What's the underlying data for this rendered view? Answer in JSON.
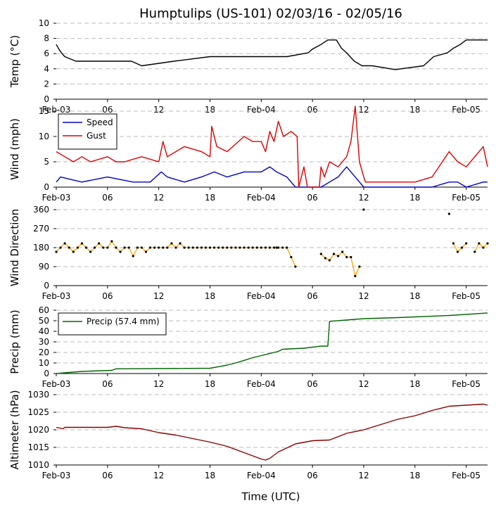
{
  "title": "Humptulips (US-101) 02/03/16 - 02/05/16",
  "xlabel": "Time (UTC)",
  "x_ticks": [
    "Feb-03",
    "06",
    "12",
    "18",
    "Feb-04",
    "06",
    "12",
    "18",
    "Feb-05"
  ],
  "colors": {
    "temp": "#000000",
    "speed": "#0000cc",
    "gust": "#dd0000",
    "direction_line": "#ffa500",
    "direction_point": "#000000",
    "precip": "#006400",
    "altimeter": "#8b0000",
    "grid": "#bbbbbb"
  },
  "chart_data": [
    {
      "type": "line",
      "title": "Humptulips (US-101) 02/03/16 - 02/05/16",
      "ylabel": "Temp (°C)",
      "xlabel": "",
      "xunit": "hours since Feb-03 00:00 UTC",
      "xlim": [
        0,
        50.5
      ],
      "ylim": [
        0,
        10
      ],
      "yticks": [
        "0",
        "2",
        "4",
        "6",
        "8",
        "10"
      ],
      "series": [
        {
          "name": "Temp",
          "x": [
            0,
            0.3,
            0.6,
            1,
            2.3,
            8.8,
            10,
            13.8,
            18,
            27,
            29.5,
            30,
            31,
            31.8,
            32.8,
            33.4,
            34,
            34.9,
            35.8,
            37,
            39.7,
            43,
            44.2,
            45.8,
            46.5,
            47.3,
            48,
            50.5
          ],
          "values": [
            7.2,
            6.6,
            6.1,
            5.6,
            5.0,
            5.0,
            4.4,
            5.0,
            5.6,
            5.6,
            6.1,
            6.6,
            7.2,
            7.8,
            7.8,
            6.7,
            6.1,
            5.0,
            4.4,
            4.4,
            3.9,
            4.4,
            5.6,
            6.1,
            6.7,
            7.2,
            7.8,
            7.8
          ]
        }
      ]
    },
    {
      "type": "line",
      "ylabel": "Wind (mph)",
      "xlim": [
        0,
        50.5
      ],
      "ylim": [
        0,
        15
      ],
      "yticks": [
        "0",
        "5",
        "10",
        "15"
      ],
      "legend": {
        "placement": "top-left",
        "entries": [
          "Speed",
          "Gust"
        ]
      },
      "series": [
        {
          "name": "Speed",
          "x": [
            0,
            0.5,
            3,
            6,
            9,
            11,
            12.3,
            13,
            15,
            17,
            18.5,
            20,
            22,
            24,
            25,
            25.8,
            27,
            28,
            29,
            30.8,
            31,
            32,
            33,
            33.5,
            34,
            34.5,
            35,
            36,
            38,
            40,
            44,
            46,
            47,
            48,
            50,
            50.5
          ],
          "values": [
            1,
            2,
            1,
            2,
            1,
            1,
            3,
            2,
            1,
            2,
            3,
            2,
            3,
            3,
            4,
            3,
            2,
            0,
            0,
            0,
            0,
            1,
            2,
            3,
            4,
            3,
            2,
            0,
            0,
            0,
            0,
            1,
            1,
            0,
            1,
            1
          ]
        },
        {
          "name": "Gust",
          "x": [
            0,
            1,
            2,
            3,
            4,
            6,
            7,
            8,
            10,
            12,
            12.5,
            13,
            15,
            17,
            18,
            18.2,
            18.8,
            20,
            22,
            23,
            24,
            24.5,
            25,
            25.5,
            26,
            26.6,
            27.5,
            28.2,
            28.4,
            29,
            29.4,
            30.8,
            31,
            31.4,
            32,
            33,
            34,
            34.5,
            35,
            35.5,
            36,
            36.2,
            42,
            44,
            46,
            47,
            48,
            49,
            50,
            50.5
          ],
          "values": [
            7,
            6,
            5,
            6,
            5,
            6,
            5,
            5,
            6,
            5,
            9,
            6,
            8,
            7,
            6,
            12,
            8,
            7,
            10,
            9,
            9,
            7,
            11,
            9,
            13,
            10,
            11,
            10,
            0,
            4,
            0,
            0,
            4,
            2,
            5,
            4,
            6,
            9,
            16,
            5,
            2,
            1,
            1,
            2,
            7,
            5,
            4,
            6,
            8,
            4
          ]
        }
      ]
    },
    {
      "type": "scatter",
      "ylabel": "Wind Direction",
      "xlim": [
        0,
        50.5
      ],
      "ylim": [
        0,
        360
      ],
      "yticks": [
        "0",
        "90",
        "180",
        "270",
        "360"
      ],
      "series": [
        {
          "name": "Wind Direction",
          "x": [
            0,
            0.5,
            1,
            1.5,
            2,
            2.5,
            3,
            3.5,
            4,
            4.5,
            5,
            5.5,
            6,
            6.5,
            7,
            7.5,
            8,
            8.5,
            9,
            9.5,
            10,
            10.5,
            11,
            11.5,
            12,
            12.5,
            13,
            13.5,
            14,
            14.5,
            15,
            15.5,
            16,
            16.5,
            17,
            17.5,
            18,
            18.5,
            19,
            19.5,
            20,
            20.5,
            21,
            21.5,
            22,
            22.5,
            23,
            23.5,
            24,
            24.5,
            25,
            25.5,
            25.8,
            26,
            26.5,
            27,
            27.5,
            28,
            31,
            31.5,
            32,
            32.5,
            33,
            33.5,
            34,
            34.5,
            35,
            35.5,
            36,
            46,
            46.5,
            47,
            47.5,
            48,
            49,
            49.5,
            50,
            50.5
          ],
          "values": [
            160,
            180,
            200,
            180,
            160,
            180,
            200,
            180,
            160,
            180,
            200,
            180,
            180,
            210,
            180,
            160,
            180,
            180,
            140,
            180,
            180,
            160,
            180,
            180,
            180,
            180,
            180,
            200,
            180,
            200,
            180,
            180,
            180,
            180,
            180,
            180,
            180,
            180,
            180,
            180,
            180,
            180,
            180,
            180,
            180,
            180,
            180,
            180,
            180,
            180,
            180,
            180,
            180,
            180,
            180,
            180,
            135,
            90,
            150,
            130,
            120,
            150,
            140,
            160,
            135,
            135,
            45,
            90,
            360,
            340,
            200,
            160,
            180,
            200,
            160,
            200,
            180,
            200
          ]
        }
      ]
    },
    {
      "type": "line",
      "ylabel": "Precip (mm)",
      "xlim": [
        0,
        50.5
      ],
      "ylim": [
        0,
        60
      ],
      "yticks": [
        "0",
        "10",
        "20",
        "30",
        "40",
        "50",
        "60"
      ],
      "legend": {
        "placement": "top-left",
        "entries": [
          "Precip (57.4 mm)"
        ]
      },
      "series": [
        {
          "name": "Precip (57.4 mm)",
          "x": [
            0,
            1.5,
            3,
            6.5,
            7,
            18,
            19,
            20,
            21,
            22,
            23,
            24,
            25,
            26,
            26.5,
            29,
            30.5,
            31,
            31.8,
            32,
            36,
            40,
            46,
            50.5
          ],
          "values": [
            0,
            1,
            2,
            3,
            4.5,
            5,
            6.5,
            8,
            10,
            12.5,
            15,
            17,
            19,
            21,
            23,
            24,
            25.5,
            26,
            26,
            49.5,
            52,
            53,
            55,
            57.4
          ]
        }
      ]
    },
    {
      "type": "line",
      "ylabel": "Altimeter (hPa)",
      "xlim": [
        0,
        50.5
      ],
      "ylim": [
        1010,
        1030
      ],
      "yticks": [
        "1010",
        "1015",
        "1020",
        "1025",
        "1030"
      ],
      "series": [
        {
          "name": "Altimeter",
          "x": [
            0,
            0.8,
            1,
            6,
            7,
            8,
            10,
            12,
            14,
            16,
            18,
            20,
            22,
            24,
            24.5,
            25,
            26,
            28,
            30,
            31,
            32,
            34,
            36,
            38,
            40,
            42,
            44,
            46,
            48,
            50,
            50.5
          ],
          "values": [
            1020.7,
            1020.3,
            1020.7,
            1020.7,
            1021,
            1020.6,
            1020.3,
            1019.2,
            1018.5,
            1017.5,
            1016.5,
            1015.3,
            1013.5,
            1011.7,
            1011.4,
            1011.9,
            1013.7,
            1016,
            1016.9,
            1017,
            1017.1,
            1019,
            1020,
            1021.5,
            1023,
            1024,
            1025.5,
            1026.7,
            1027,
            1027.3,
            1027
          ]
        }
      ]
    }
  ]
}
